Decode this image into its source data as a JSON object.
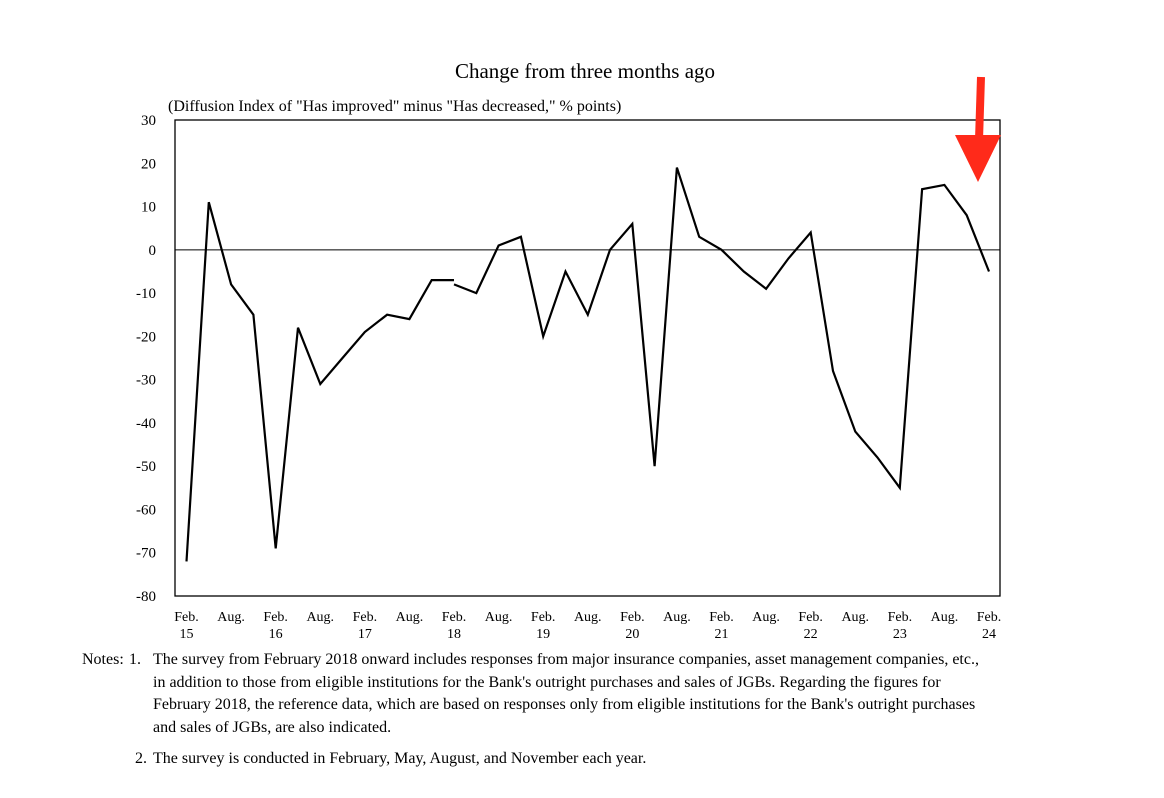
{
  "chart_data": {
    "type": "line",
    "title": "Change from three months ago",
    "subtitle": "(Diffusion Index of \"Has improved\" minus \"Has decreased,\" % points)",
    "ylim": [
      -80,
      30
    ],
    "yticks": [
      "30",
      "20",
      "10",
      "0",
      "-10",
      "-20",
      "-30",
      "-40",
      "-50",
      "-60",
      "-70",
      "-80"
    ],
    "ytick_values": [
      30,
      20,
      10,
      0,
      -10,
      -20,
      -30,
      -40,
      -50,
      -60,
      -70,
      -80
    ],
    "xtick_labels": [
      {
        "month": "Feb.",
        "year": "15"
      },
      {
        "month": "Aug.",
        "year": ""
      },
      {
        "month": "Feb.",
        "year": "16"
      },
      {
        "month": "Aug.",
        "year": ""
      },
      {
        "month": "Feb.",
        "year": "17"
      },
      {
        "month": "Aug.",
        "year": ""
      },
      {
        "month": "Feb.",
        "year": "18"
      },
      {
        "month": "Aug.",
        "year": ""
      },
      {
        "month": "Feb.",
        "year": "19"
      },
      {
        "month": "Aug.",
        "year": ""
      },
      {
        "month": "Feb.",
        "year": "20"
      },
      {
        "month": "Aug.",
        "year": ""
      },
      {
        "month": "Feb.",
        "year": "21"
      },
      {
        "month": "Aug.",
        "year": ""
      },
      {
        "month": "Feb.",
        "year": "22"
      },
      {
        "month": "Aug.",
        "year": ""
      },
      {
        "month": "Feb.",
        "year": "23"
      },
      {
        "month": "Aug.",
        "year": ""
      },
      {
        "month": "Feb.",
        "year": "24"
      }
    ],
    "series": [
      {
        "segment": "eligible-institutions-only",
        "x": [
          "Feb. 15",
          "May 15",
          "Aug. 15",
          "Nov. 15",
          "Feb. 16",
          "May 16",
          "Aug. 16",
          "Nov. 16",
          "Feb. 17",
          "May 17",
          "Aug. 17",
          "Nov. 17",
          "Feb. 18"
        ],
        "values": [
          -72,
          11,
          -8,
          -15,
          -69,
          -18,
          -31,
          -25,
          -19,
          -15,
          -16,
          -7,
          -7
        ]
      },
      {
        "segment": "including-major-insurers-and-asset-managers",
        "x": [
          "Feb. 18",
          "May 18",
          "Aug. 18",
          "Nov. 18",
          "Feb. 19",
          "May 19",
          "Aug. 19",
          "Nov. 19",
          "Feb. 20",
          "May 20",
          "Aug. 20",
          "Nov. 20",
          "Feb. 21",
          "May 21",
          "Aug. 21",
          "Nov. 21",
          "Feb. 22",
          "May 22",
          "Aug. 22",
          "Nov. 22",
          "Feb. 23",
          "May 23",
          "Aug. 23",
          "Nov. 23",
          "Feb. 24"
        ],
        "values": [
          -8,
          -10,
          1,
          3,
          -20,
          -5,
          -15,
          0,
          6,
          -50,
          19,
          3,
          0,
          -5,
          -9,
          -2,
          4,
          -28,
          -42,
          -48,
          -55,
          14,
          15,
          8,
          -5
        ]
      }
    ],
    "zero_line": true,
    "grid": false,
    "annotation_arrow_color": "#ff2a1a",
    "line_color": "#000000"
  },
  "notes": {
    "prefix": "Notes: ",
    "note1_num": "1.",
    "note1_text": "The survey from February 2018 onward includes responses from major insurance companies, asset  management companies, etc., in addition to those from eligible institutions for the Bank's outright purchases and sales of JGBs. Regarding the figures for February 2018, the reference data, which are based on responses only from eligible institutions for the Bank's outright purchases and sales of JGBs, are also indicated.",
    "note2_num": "2.",
    "note2_text": "The survey is conducted in February, May, August, and November each year."
  }
}
